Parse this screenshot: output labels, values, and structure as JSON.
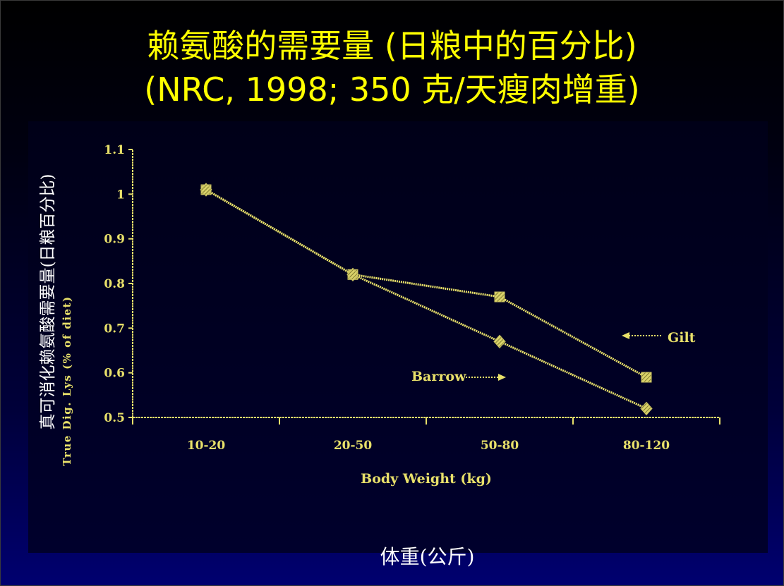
{
  "slide": {
    "title_line1": "赖氨酸的需要量 (日粮中的百分比)",
    "title_line2": "(NRC, 1998; 350 克/天瘦肉增重)",
    "ylabel_cn": "真可消化赖氨酸需要量(日粮百分比)",
    "xlabel_cn": "体重(公斤)"
  },
  "colors": {
    "title": "#ffff00",
    "chart": "#e8e06a",
    "background_top": "#000000",
    "background_bottom": "#000070"
  },
  "chart_data": {
    "type": "line",
    "xlabel": "Body Weight (kg)",
    "ylabel": "True Dig. Lys (% of diet)",
    "categories": [
      "10-20",
      "20-50",
      "50-80",
      "80-120"
    ],
    "ylim": [
      0.5,
      1.1
    ],
    "yticks": [
      "0.5",
      "0.6",
      "0.7",
      "0.8",
      "0.9",
      "1",
      "1.1"
    ],
    "grid": false,
    "series": [
      {
        "name": "Gilt",
        "marker": "square",
        "values": [
          1.01,
          0.82,
          0.77,
          0.59
        ]
      },
      {
        "name": "Barrow",
        "marker": "diamond",
        "values": [
          1.01,
          0.82,
          0.67,
          0.52
        ]
      }
    ]
  }
}
